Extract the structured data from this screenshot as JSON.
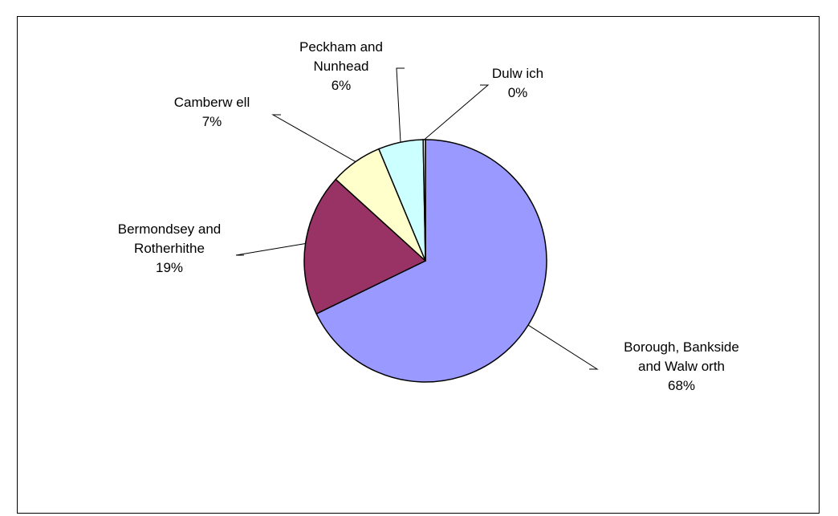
{
  "chart_data": {
    "type": "pie",
    "title": "",
    "legend": "none",
    "slices": [
      {
        "label_lines": [
          "Borough, Bankside",
          "and Walw orth"
        ],
        "pct_label": "68%",
        "value": 68,
        "color": "#9999ff"
      },
      {
        "label_lines": [
          "Bermondsey and",
          "Rotherhithe"
        ],
        "pct_label": "19%",
        "value": 19,
        "color": "#993366"
      },
      {
        "label_lines": [
          "Camberw ell"
        ],
        "pct_label": "7%",
        "value": 7,
        "color": "#ffffcc"
      },
      {
        "label_lines": [
          "Peckham and",
          "Nunhead"
        ],
        "pct_label": "6%",
        "value": 6,
        "color": "#ccffff"
      },
      {
        "label_lines": [
          "Dulw ich"
        ],
        "pct_label": "0%",
        "value": 0.3,
        "color": "#ffffff"
      }
    ]
  }
}
